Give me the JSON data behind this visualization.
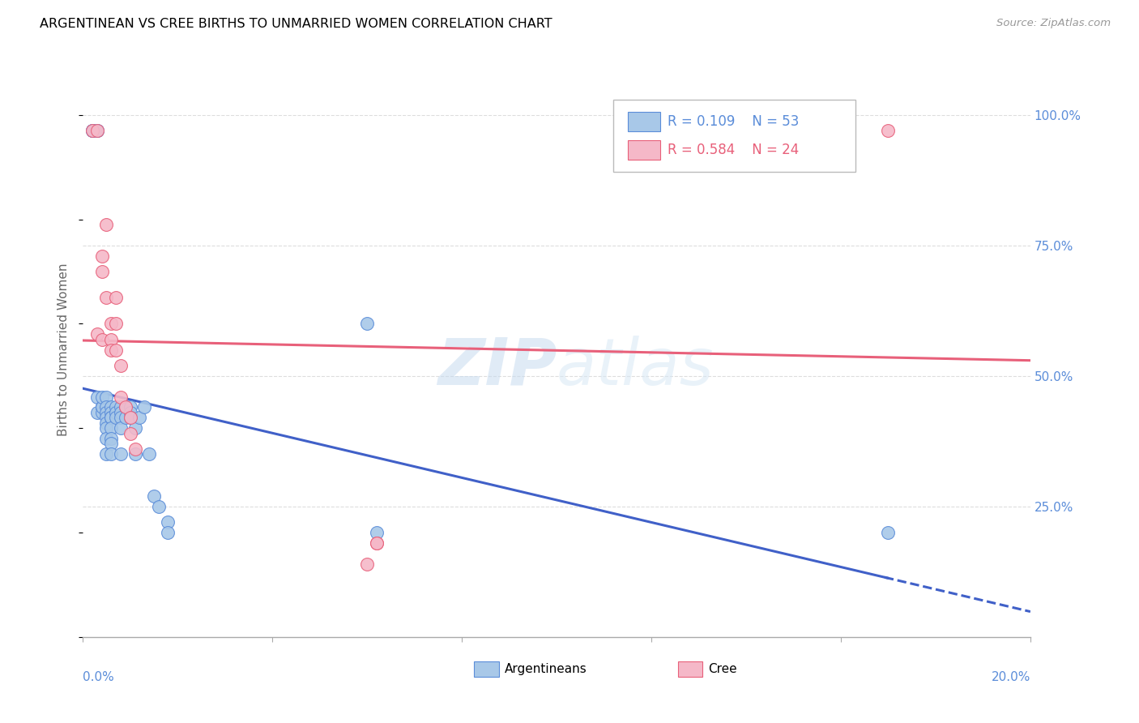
{
  "title": "ARGENTINEAN VS CREE BIRTHS TO UNMARRIED WOMEN CORRELATION CHART",
  "source": "Source: ZipAtlas.com",
  "ylabel": "Births to Unmarried Women",
  "right_ytick_vals": [
    0.25,
    0.5,
    0.75,
    1.0
  ],
  "right_ytick_labels": [
    "25.0%",
    "50.0%",
    "75.0%",
    "100.0%"
  ],
  "watermark_zip": "ZIP",
  "watermark_atlas": "atlas",
  "legend_argentinean": "Argentineans",
  "legend_cree": "Cree",
  "legend_r_argentinean": "0.109",
  "legend_n_argentinean": "53",
  "legend_r_cree": "0.584",
  "legend_n_cree": "24",
  "blue_fill": "#A8C8E8",
  "blue_edge": "#5B8DD9",
  "pink_fill": "#F5B8C8",
  "pink_edge": "#E8607A",
  "blue_line": "#4060C8",
  "pink_line": "#E8607A",
  "grid_color": "#DDDDDD",
  "axis_color": "#AAAAAA",
  "right_label_color": "#5B8DD9",
  "argentinean_x": [
    0.002,
    0.002,
    0.002,
    0.003,
    0.003,
    0.003,
    0.003,
    0.004,
    0.004,
    0.004,
    0.004,
    0.004,
    0.005,
    0.005,
    0.005,
    0.005,
    0.005,
    0.005,
    0.005,
    0.005,
    0.006,
    0.006,
    0.006,
    0.006,
    0.006,
    0.006,
    0.006,
    0.006,
    0.007,
    0.007,
    0.007,
    0.008,
    0.008,
    0.008,
    0.008,
    0.008,
    0.009,
    0.009,
    0.01,
    0.01,
    0.01,
    0.011,
    0.011,
    0.012,
    0.013,
    0.014,
    0.015,
    0.016,
    0.018,
    0.018,
    0.06,
    0.062,
    0.17
  ],
  "argentinean_y": [
    0.97,
    0.97,
    0.97,
    0.97,
    0.97,
    0.46,
    0.43,
    0.44,
    0.44,
    0.43,
    0.44,
    0.46,
    0.46,
    0.44,
    0.43,
    0.42,
    0.41,
    0.4,
    0.38,
    0.35,
    0.44,
    0.43,
    0.42,
    0.42,
    0.4,
    0.38,
    0.37,
    0.35,
    0.44,
    0.43,
    0.42,
    0.44,
    0.43,
    0.42,
    0.4,
    0.35,
    0.44,
    0.42,
    0.44,
    0.43,
    0.42,
    0.4,
    0.35,
    0.42,
    0.44,
    0.35,
    0.27,
    0.25,
    0.22,
    0.2,
    0.6,
    0.2,
    0.2
  ],
  "cree_x": [
    0.002,
    0.003,
    0.003,
    0.004,
    0.004,
    0.004,
    0.005,
    0.005,
    0.006,
    0.006,
    0.006,
    0.007,
    0.007,
    0.007,
    0.008,
    0.008,
    0.009,
    0.01,
    0.01,
    0.011,
    0.06,
    0.062,
    0.062,
    0.17
  ],
  "cree_y": [
    0.97,
    0.97,
    0.58,
    0.73,
    0.7,
    0.57,
    0.79,
    0.65,
    0.6,
    0.57,
    0.55,
    0.65,
    0.6,
    0.55,
    0.52,
    0.46,
    0.44,
    0.42,
    0.39,
    0.36,
    0.14,
    0.18,
    0.18,
    0.97
  ],
  "xlim": [
    0.0,
    0.2
  ],
  "ylim": [
    0.0,
    1.1
  ],
  "xtick_positions": [
    0.0,
    0.04,
    0.08,
    0.12,
    0.16,
    0.2
  ],
  "ytick_grid_positions": [
    0.25,
    0.5,
    0.75,
    1.0
  ]
}
